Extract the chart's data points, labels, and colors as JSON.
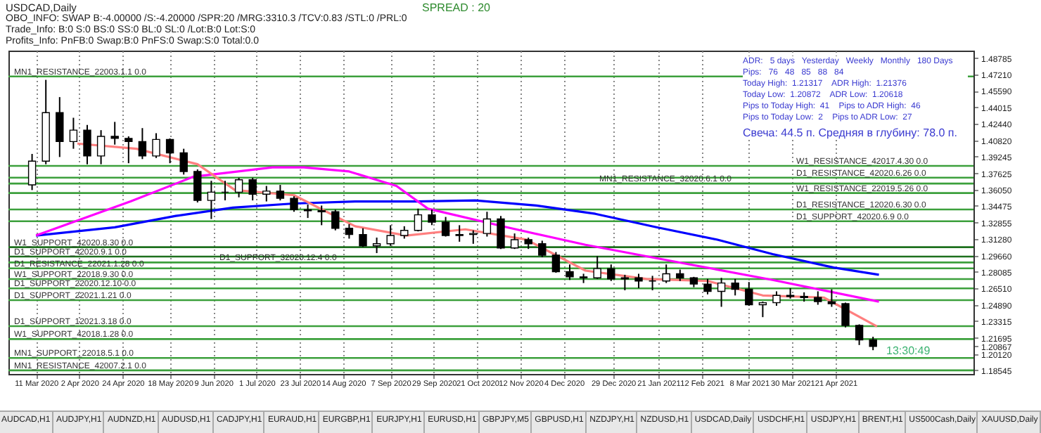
{
  "chart_data": {
    "type": "candlestick",
    "title": "USDCAD,Daily",
    "annotations": [
      "OBO_INFO: SWAP B:-4.00000 /S:-4.20000 /SPR:20 /MRG:3310.3 /TCV:0.83 /STL:0 /PRL:0",
      "Trade_Info: B:0 S:0 BS:0 SS:0 BL:0 SL:0 /Lot:B:0 Lot:S:0",
      "Profits_Info: PnFB:0 Swap:B:0 PnFS:0 Swap:S:0 Total:0.0",
      "SPREAD : 20",
      "ADR:   5 days   Yesterday   Weekly   Monthly   180 Days",
      "Pips:   76   48   85   88   84",
      "Today High:  1.21317    ADR High:  1.21376",
      "Today Low:  1.20872    ADR Low:  1.20618",
      "Pips to Today High:  41    Pips to ADR High:  46",
      "Pips to Today Low:  2    Pips to ADR Low:  27",
      "Свеча: 44.5 п. Средняя в глубину: 78.0 п.",
      "13:30:49",
      "AUDCAD,H1",
      "AUDJPY,H1",
      "AUDNZD,H1",
      "AUDUSD,H1",
      "CADJPY,H1",
      "EURAUD,H1",
      "EURGBP,H1",
      "EURJPY,H1",
      "EURUSD,H1",
      "GBPJPY,M5",
      "GBPUSD,H1",
      "NZDJPY,H1",
      "NZDUSD,H1",
      "USDCAD,Daily",
      "USDCHF,H1",
      "USDJPY,H1",
      "BRENT,H1",
      "US500Cash,Daily",
      "XAUUSD,Daily"
    ],
    "x": [
      "2020-03-09",
      "2020-03-16",
      "2020-03-23",
      "2020-03-30",
      "2020-04-06",
      "2020-04-13",
      "2020-04-20",
      "2020-04-27",
      "2020-05-04",
      "2020-05-11",
      "2020-05-18",
      "2020-05-25",
      "2020-06-01",
      "2020-06-08",
      "2020-06-15",
      "2020-06-22",
      "2020-06-29",
      "2020-07-06",
      "2020-07-13",
      "2020-07-20",
      "2020-07-27",
      "2020-08-03",
      "2020-08-10",
      "2020-08-17",
      "2020-08-24",
      "2020-08-31",
      "2020-09-07",
      "2020-09-14",
      "2020-09-21",
      "2020-09-28",
      "2020-10-05",
      "2020-10-12",
      "2020-10-19",
      "2020-10-26",
      "2020-11-02",
      "2020-11-09",
      "2020-11-16",
      "2020-11-23",
      "2020-11-30",
      "2020-12-07",
      "2020-12-14",
      "2020-12-21",
      "2020-12-28",
      "2021-01-04",
      "2021-01-11",
      "2021-01-18",
      "2021-01-25",
      "2021-02-01",
      "2021-02-08",
      "2021-02-15",
      "2021-02-22",
      "2021-03-01",
      "2021-03-08",
      "2021-03-15",
      "2021-03-22",
      "2021-03-29",
      "2021-04-05",
      "2021-04-12",
      "2021-04-19",
      "2021-04-26",
      "2021-05-03",
      "2021-05-10"
    ],
    "ohlc": [
      [
        1.365,
        1.395,
        1.36,
        1.388
      ],
      [
        1.388,
        1.4667,
        1.385,
        1.435
      ],
      [
        1.435,
        1.45,
        1.392,
        1.407
      ],
      [
        1.407,
        1.43,
        1.4,
        1.418
      ],
      [
        1.418,
        1.423,
        1.385,
        1.393
      ],
      [
        1.393,
        1.418,
        1.385,
        1.412
      ],
      [
        1.412,
        1.426,
        1.404,
        1.41
      ],
      [
        1.41,
        1.412,
        1.386,
        1.407
      ],
      [
        1.407,
        1.42,
        1.39,
        1.393
      ],
      [
        1.393,
        1.415,
        1.391,
        1.409
      ],
      [
        1.409,
        1.41,
        1.386,
        1.396
      ],
      [
        1.396,
        1.4,
        1.375,
        1.378
      ],
      [
        1.378,
        1.38,
        1.348,
        1.35
      ],
      [
        1.35,
        1.369,
        1.332,
        1.358
      ],
      [
        1.358,
        1.369,
        1.35,
        1.358
      ],
      [
        1.358,
        1.372,
        1.353,
        1.37
      ],
      [
        1.37,
        1.372,
        1.35,
        1.356
      ],
      [
        1.356,
        1.364,
        1.349,
        1.359
      ],
      [
        1.359,
        1.365,
        1.35,
        1.352
      ],
      [
        1.352,
        1.354,
        1.339,
        1.341
      ],
      [
        1.341,
        1.346,
        1.333,
        1.34
      ],
      [
        1.34,
        1.345,
        1.326,
        1.339
      ],
      [
        1.339,
        1.341,
        1.321,
        1.323
      ],
      [
        1.323,
        1.327,
        1.313,
        1.317
      ],
      [
        1.317,
        1.323,
        1.305,
        1.306
      ],
      [
        1.306,
        1.314,
        1.299,
        1.308
      ],
      [
        1.308,
        1.326,
        1.306,
        1.316
      ],
      [
        1.316,
        1.325,
        1.313,
        1.321
      ],
      [
        1.321,
        1.342,
        1.32,
        1.336
      ],
      [
        1.336,
        1.341,
        1.326,
        1.329
      ],
      [
        1.329,
        1.334,
        1.315,
        1.316
      ],
      [
        1.316,
        1.326,
        1.31,
        1.317
      ],
      [
        1.317,
        1.321,
        1.308,
        1.318
      ],
      [
        1.318,
        1.339,
        1.315,
        1.332
      ],
      [
        1.332,
        1.335,
        1.303,
        1.304
      ],
      [
        1.304,
        1.318,
        1.303,
        1.312
      ],
      [
        1.312,
        1.314,
        1.303,
        1.308
      ],
      [
        1.308,
        1.311,
        1.295,
        1.297
      ],
      [
        1.297,
        1.3,
        1.28,
        1.281
      ],
      [
        1.281,
        1.288,
        1.273,
        1.276
      ],
      [
        1.276,
        1.279,
        1.27,
        1.275
      ],
      [
        1.275,
        1.296,
        1.274,
        1.284
      ],
      [
        1.284,
        1.288,
        1.272,
        1.274
      ],
      [
        1.274,
        1.278,
        1.263,
        1.275
      ],
      [
        1.275,
        1.279,
        1.265,
        1.272
      ],
      [
        1.272,
        1.277,
        1.263,
        1.272
      ],
      [
        1.272,
        1.288,
        1.27,
        1.279
      ],
      [
        1.279,
        1.283,
        1.272,
        1.275
      ],
      [
        1.275,
        1.276,
        1.266,
        1.269
      ],
      [
        1.269,
        1.274,
        1.259,
        1.262
      ],
      [
        1.262,
        1.275,
        1.247,
        1.27
      ],
      [
        1.27,
        1.274,
        1.258,
        1.264
      ],
      [
        1.264,
        1.271,
        1.248,
        1.249
      ],
      [
        1.249,
        1.252,
        1.237,
        1.251
      ],
      [
        1.251,
        1.262,
        1.248,
        1.258
      ],
      [
        1.258,
        1.265,
        1.255,
        1.257
      ],
      [
        1.257,
        1.261,
        1.252,
        1.256
      ],
      [
        1.256,
        1.262,
        1.249,
        1.252
      ],
      [
        1.252,
        1.264,
        1.247,
        1.25
      ],
      [
        1.25,
        1.251,
        1.227,
        1.229
      ],
      [
        1.229,
        1.23,
        1.21,
        1.215
      ],
      [
        1.215,
        1.218,
        1.205,
        1.20867
      ]
    ],
    "series": [
      {
        "type": "line",
        "color": "#0000ff",
        "x": [
          "2020-03-11",
          "2020-04-20",
          "2020-05-21",
          "2020-06-19",
          "2020-07-20",
          "2020-08-20",
          "2020-09-20",
          "2020-10-20",
          "2020-11-20",
          "2020-12-20",
          "2021-01-20",
          "2021-02-20",
          "2021-03-20",
          "2021-04-20",
          "2021-05-13"
        ],
        "values": [
          1.316,
          1.324,
          1.335,
          1.343,
          1.347,
          1.349,
          1.349,
          1.35,
          1.345,
          1.337,
          1.324,
          1.312,
          1.298,
          1.285,
          1.278
        ]
      },
      {
        "type": "line",
        "color": "#ff00ff",
        "x": [
          "2020-03-11",
          "2020-04-28",
          "2020-05-30",
          "2020-07-09",
          "2020-07-25",
          "2020-08-17",
          "2020-09-10",
          "2020-09-26",
          "2020-11-05",
          "2020-12-15",
          "2021-02-06",
          "2021-03-20",
          "2021-05-13"
        ],
        "values": [
          1.316,
          1.349,
          1.373,
          1.382,
          1.382,
          1.378,
          1.364,
          1.342,
          1.324,
          1.307,
          1.288,
          1.273,
          1.252
        ]
      },
      {
        "type": "line",
        "color": "#ff7f7f",
        "x": [
          "2020-04-01",
          "2020-05-01",
          "2020-06-01",
          "2020-06-20",
          "2020-07-20",
          "2020-08-20",
          "2020-09-15",
          "2020-10-15",
          "2020-11-15",
          "2020-12-15",
          "2021-01-15",
          "2021-02-15",
          "2021-03-15",
          "2021-04-15",
          "2021-05-12"
        ],
        "values": [
          1.405,
          1.4,
          1.385,
          1.36,
          1.355,
          1.325,
          1.316,
          1.322,
          1.312,
          1.282,
          1.274,
          1.272,
          1.258,
          1.256,
          1.228
        ]
      }
    ],
    "xlim": [
      "2020-02-26",
      "2021-06-30"
    ],
    "xticks": [
      {
        "value": "2020-03-11",
        "label": "11 Mar 2020"
      },
      {
        "value": "2020-04-02",
        "label": "2 Apr 2020"
      },
      {
        "value": "2020-04-24",
        "label": "24 Apr 2020"
      },
      {
        "value": "2020-05-18",
        "label": "18 May 2020"
      },
      {
        "value": "2020-06-09",
        "label": "9 Jun 2020"
      },
      {
        "value": "2020-07-01",
        "label": "1 Jul 2020"
      },
      {
        "value": "2020-07-23",
        "label": "23 Jul 2020"
      },
      {
        "value": "2020-08-14",
        "label": "14 Aug 2020"
      },
      {
        "value": "2020-09-07",
        "label": "7 Sep 2020"
      },
      {
        "value": "2020-09-29",
        "label": "29 Sep 2020"
      },
      {
        "value": "2020-10-21",
        "label": "21 Oct 2020"
      },
      {
        "value": "2020-11-12",
        "label": "12 Nov 2020"
      },
      {
        "value": "2020-12-04",
        "label": "4 Dec 2020"
      },
      {
        "value": "2020-12-29",
        "label": "29 Dec 2020"
      },
      {
        "value": "2021-01-21",
        "label": "21 Jan 2021"
      },
      {
        "value": "2021-02-12",
        "label": "12 Feb 2021"
      },
      {
        "value": "2021-03-08",
        "label": "8 Mar 2021"
      },
      {
        "value": "2021-03-30",
        "label": "30 Mar 2021"
      },
      {
        "value": "2021-04-21",
        "label": "21 Apr 2021"
      }
    ],
    "ylim": [
      1.182,
      1.495
    ],
    "yticks": [
      1.48785,
      {
        "value": 1.4721,
        "label": "1.47210"
      },
      {
        "value": 1.4559,
        "label": "1.45590"
      },
      1.44015,
      {
        "value": 1.4244,
        "label": "1.42440"
      },
      {
        "value": 1.4082,
        "label": "1.40820"
      },
      1.39245,
      1.37625,
      {
        "value": 1.3605,
        "label": "1.36050"
      },
      1.34475,
      1.32855,
      {
        "value": 1.3128,
        "label": "1.31280"
      },
      {
        "value": 1.2966,
        "label": "1.29660"
      },
      1.28085,
      {
        "value": 1.2651,
        "label": "1.26510"
      },
      {
        "value": 1.2489,
        "label": "1.24890"
      },
      1.23315,
      1.21695,
      1.20867,
      {
        "value": 1.2012,
        "label": "1.20120"
      },
      1.18545
    ],
    "grid": "x",
    "ref_lines": [
      {
        "axis": "y",
        "value": 1.47,
        "label": "MN1_RESISTANCE_22003.1.1 0.0",
        "color": "#3ca03c"
      },
      {
        "axis": "y",
        "value": 1.3834,
        "label": "W1_RESISTANCE_42017.4.30 0.0",
        "color": "#3ca03c"
      },
      {
        "axis": "y",
        "value": 1.372,
        "label": "D1_RESISTANCE_42020.6.26 0.0",
        "color": "#3ca03c"
      },
      {
        "axis": "y",
        "value": 1.3663,
        "label": "MN1_RESISTANCE_32020.6.1 0.0",
        "color": "#3ca03c"
      },
      {
        "axis": "y",
        "value": 1.3571,
        "label": "W1_RESISTANCE_22019.5.26 0.0",
        "color": "#3ca03c"
      },
      {
        "axis": "y",
        "value": 1.3412,
        "label": "D1_RESISTANCE_12020.6.30 0.0",
        "color": "#3ca03c"
      },
      {
        "axis": "y",
        "value": 1.3298,
        "label": "D1_SUPPORT_42020.6.9 0.0",
        "color": "#3ca03c"
      },
      {
        "axis": "y",
        "value": 1.3047,
        "label": "W1_SUPPORT_42020.8.30 0.0",
        "color": "#1e701e"
      },
      {
        "axis": "y",
        "value": 1.2956,
        "label": "D1_SUPPORT_42020.9.1 0.0",
        "color": "#1e701e"
      },
      {
        "axis": "y",
        "value": 1.2899,
        "label": "D1_SUPPORT_32020.12.4 0.0",
        "color": "#3ca03c"
      },
      {
        "axis": "y",
        "value": 1.2842,
        "label": "D1_RESISTANCE_22021.1.28 0.0",
        "color": "#3ca03c"
      },
      {
        "axis": "y",
        "value": 1.2739,
        "label": "W1_SUPPORT_22018.9.30 0.0",
        "color": "#3ca03c"
      },
      {
        "axis": "y",
        "value": 1.2648,
        "label": "D1_SUPPORT_22020.12.10 0.0",
        "color": "#3ca03c"
      },
      {
        "axis": "y",
        "value": 1.2534,
        "label": "D1_SUPPORT_22021.1.21 0.0",
        "color": "#3ca03c"
      },
      {
        "axis": "y",
        "value": 1.2283,
        "label": "D1_SUPPORT_12021.3.18 0.0",
        "color": "#3ca03c"
      },
      {
        "axis": "y",
        "value": 1.2158,
        "label": "W1_SUPPORT_42018.1.28 0.0",
        "color": "#3ca03c"
      },
      {
        "axis": "y",
        "value": 1.1975,
        "label": "MN1_SUPPORT_22018.5.1 0.0",
        "color": "#3ca03c"
      },
      {
        "axis": "y",
        "value": 1.1855,
        "label": "MN1_RESISTANCE_42007.2.1 0.0",
        "color": "#3ca03c"
      }
    ]
  }
}
